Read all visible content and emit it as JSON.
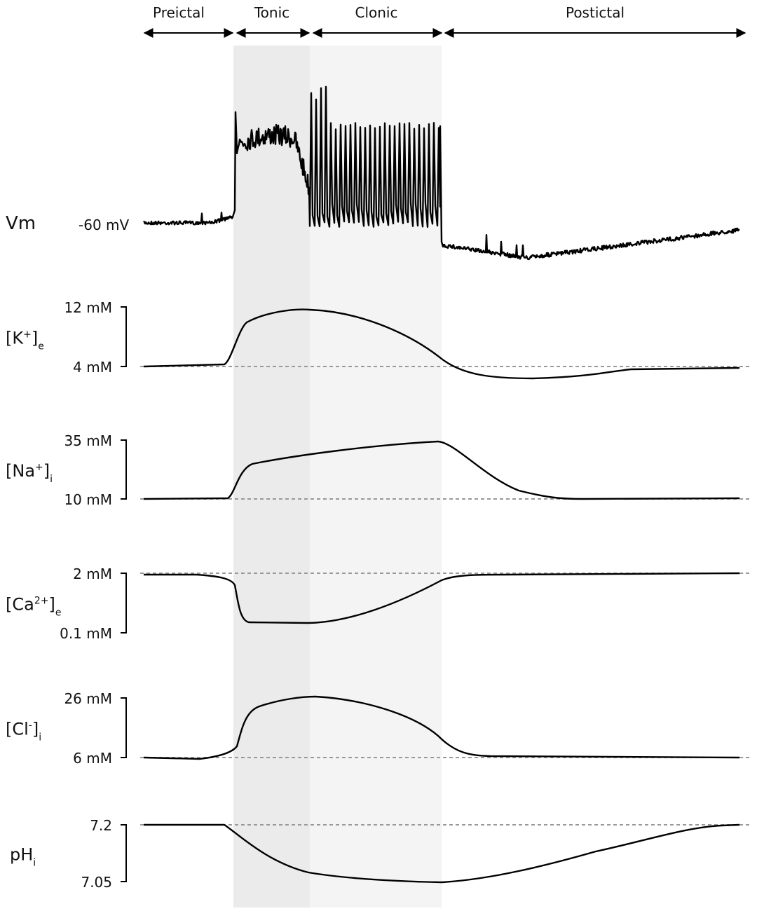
{
  "phases": [
    "Preictal",
    "Tonic",
    "Clonic",
    "Postictal"
  ],
  "vm": {
    "name": "Vm",
    "level": "-60 mV"
  },
  "panels": [
    {
      "name": "[K",
      "sup": "+",
      "tail": "]",
      "sub": "e",
      "top": "12 mM",
      "bottom": "4 mM"
    },
    {
      "name": "[Na",
      "sup": "+",
      "tail": "]",
      "sub": "i",
      "top": "35 mM",
      "bottom": "10 mM"
    },
    {
      "name": "[Ca",
      "sup": "2+",
      "tail": "]",
      "sub": "e",
      "top": "2 mM",
      "bottom": "0.1 mM"
    },
    {
      "name": "[Cl",
      "sup": "-",
      "tail": "]",
      "sub": "i",
      "top": "26 mM",
      "bottom": "6 mM"
    },
    {
      "name": "pH",
      "sub": "i",
      "top": "7.2",
      "bottom": "7.05"
    }
  ]
}
